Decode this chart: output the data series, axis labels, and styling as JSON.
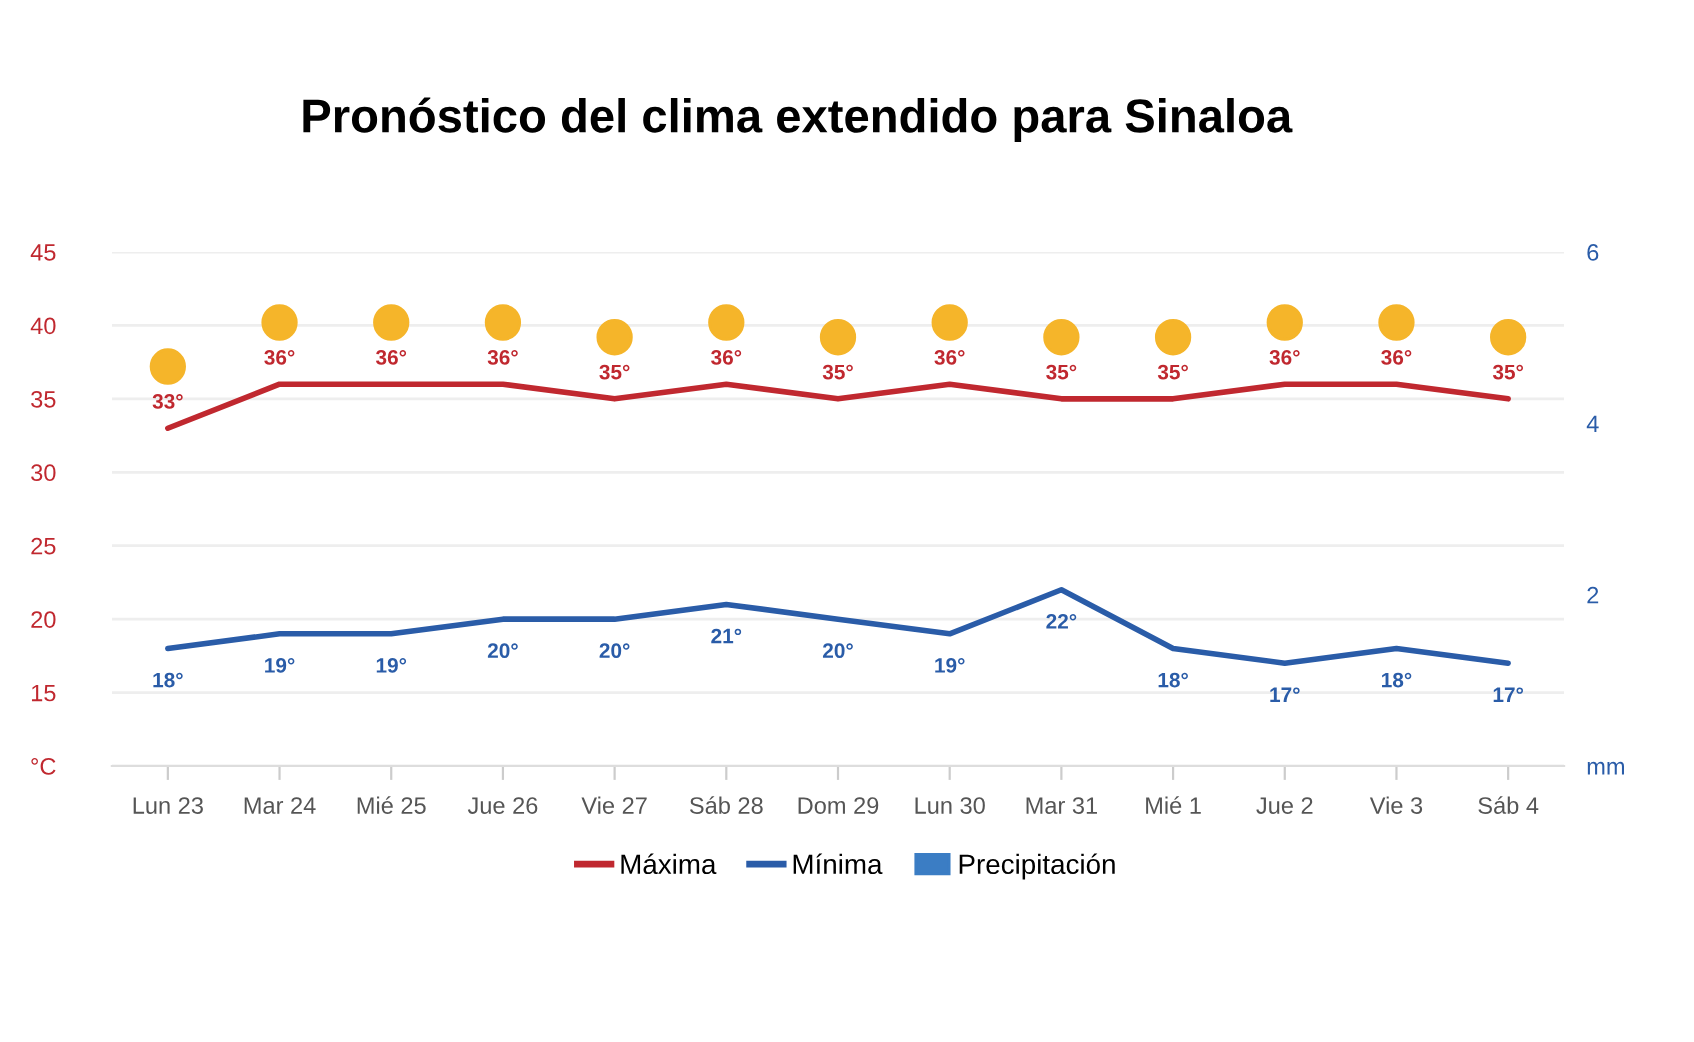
{
  "chart_data": {
    "type": "line",
    "title": "Pronóstico del clima extendido para Sinaloa",
    "categories": [
      "Lun 23",
      "Mar 24",
      "Mié 25",
      "Jue 26",
      "Vie 27",
      "Sáb 28",
      "Dom 29",
      "Lun 30",
      "Mar 31",
      "Mié 1",
      "Jue 2",
      "Vie 3",
      "Sáb 4"
    ],
    "series": [
      {
        "name": "Máxima",
        "color": "#c0282f",
        "values": [
          33,
          36,
          36,
          36,
          35,
          36,
          35,
          36,
          35,
          35,
          36,
          36,
          35
        ],
        "value_labels": [
          "33°",
          "36°",
          "36°",
          "36°",
          "35°",
          "36°",
          "35°",
          "36°",
          "35°",
          "35°",
          "36°",
          "36°",
          "35°"
        ]
      },
      {
        "name": "Mínima",
        "color": "#2a5ca8",
        "values": [
          18,
          19,
          19,
          20,
          20,
          21,
          20,
          19,
          22,
          18,
          17,
          18,
          17
        ],
        "value_labels": [
          "18°",
          "19°",
          "19°",
          "20°",
          "20°",
          "21°",
          "20°",
          "19°",
          "22°",
          "18°",
          "17°",
          "18°",
          "17°"
        ]
      },
      {
        "name": "Precipitación",
        "type": "bar",
        "color": "#3b7dc4",
        "values": [
          null,
          null,
          null,
          null,
          null,
          null,
          null,
          null,
          null,
          null,
          null,
          null,
          null
        ]
      }
    ],
    "ylim": [
      10,
      45
    ],
    "yticks": [
      {
        "value": 10,
        "label": "°C"
      },
      15,
      20,
      25,
      30,
      35,
      40,
      45
    ],
    "y2lim": [
      0,
      6
    ],
    "y2ticks": [
      {
        "value": 0,
        "label": "mm"
      },
      2,
      4,
      6
    ],
    "grid": "y",
    "legend": "bottom",
    "marker": "none",
    "line_style": "solid"
  }
}
